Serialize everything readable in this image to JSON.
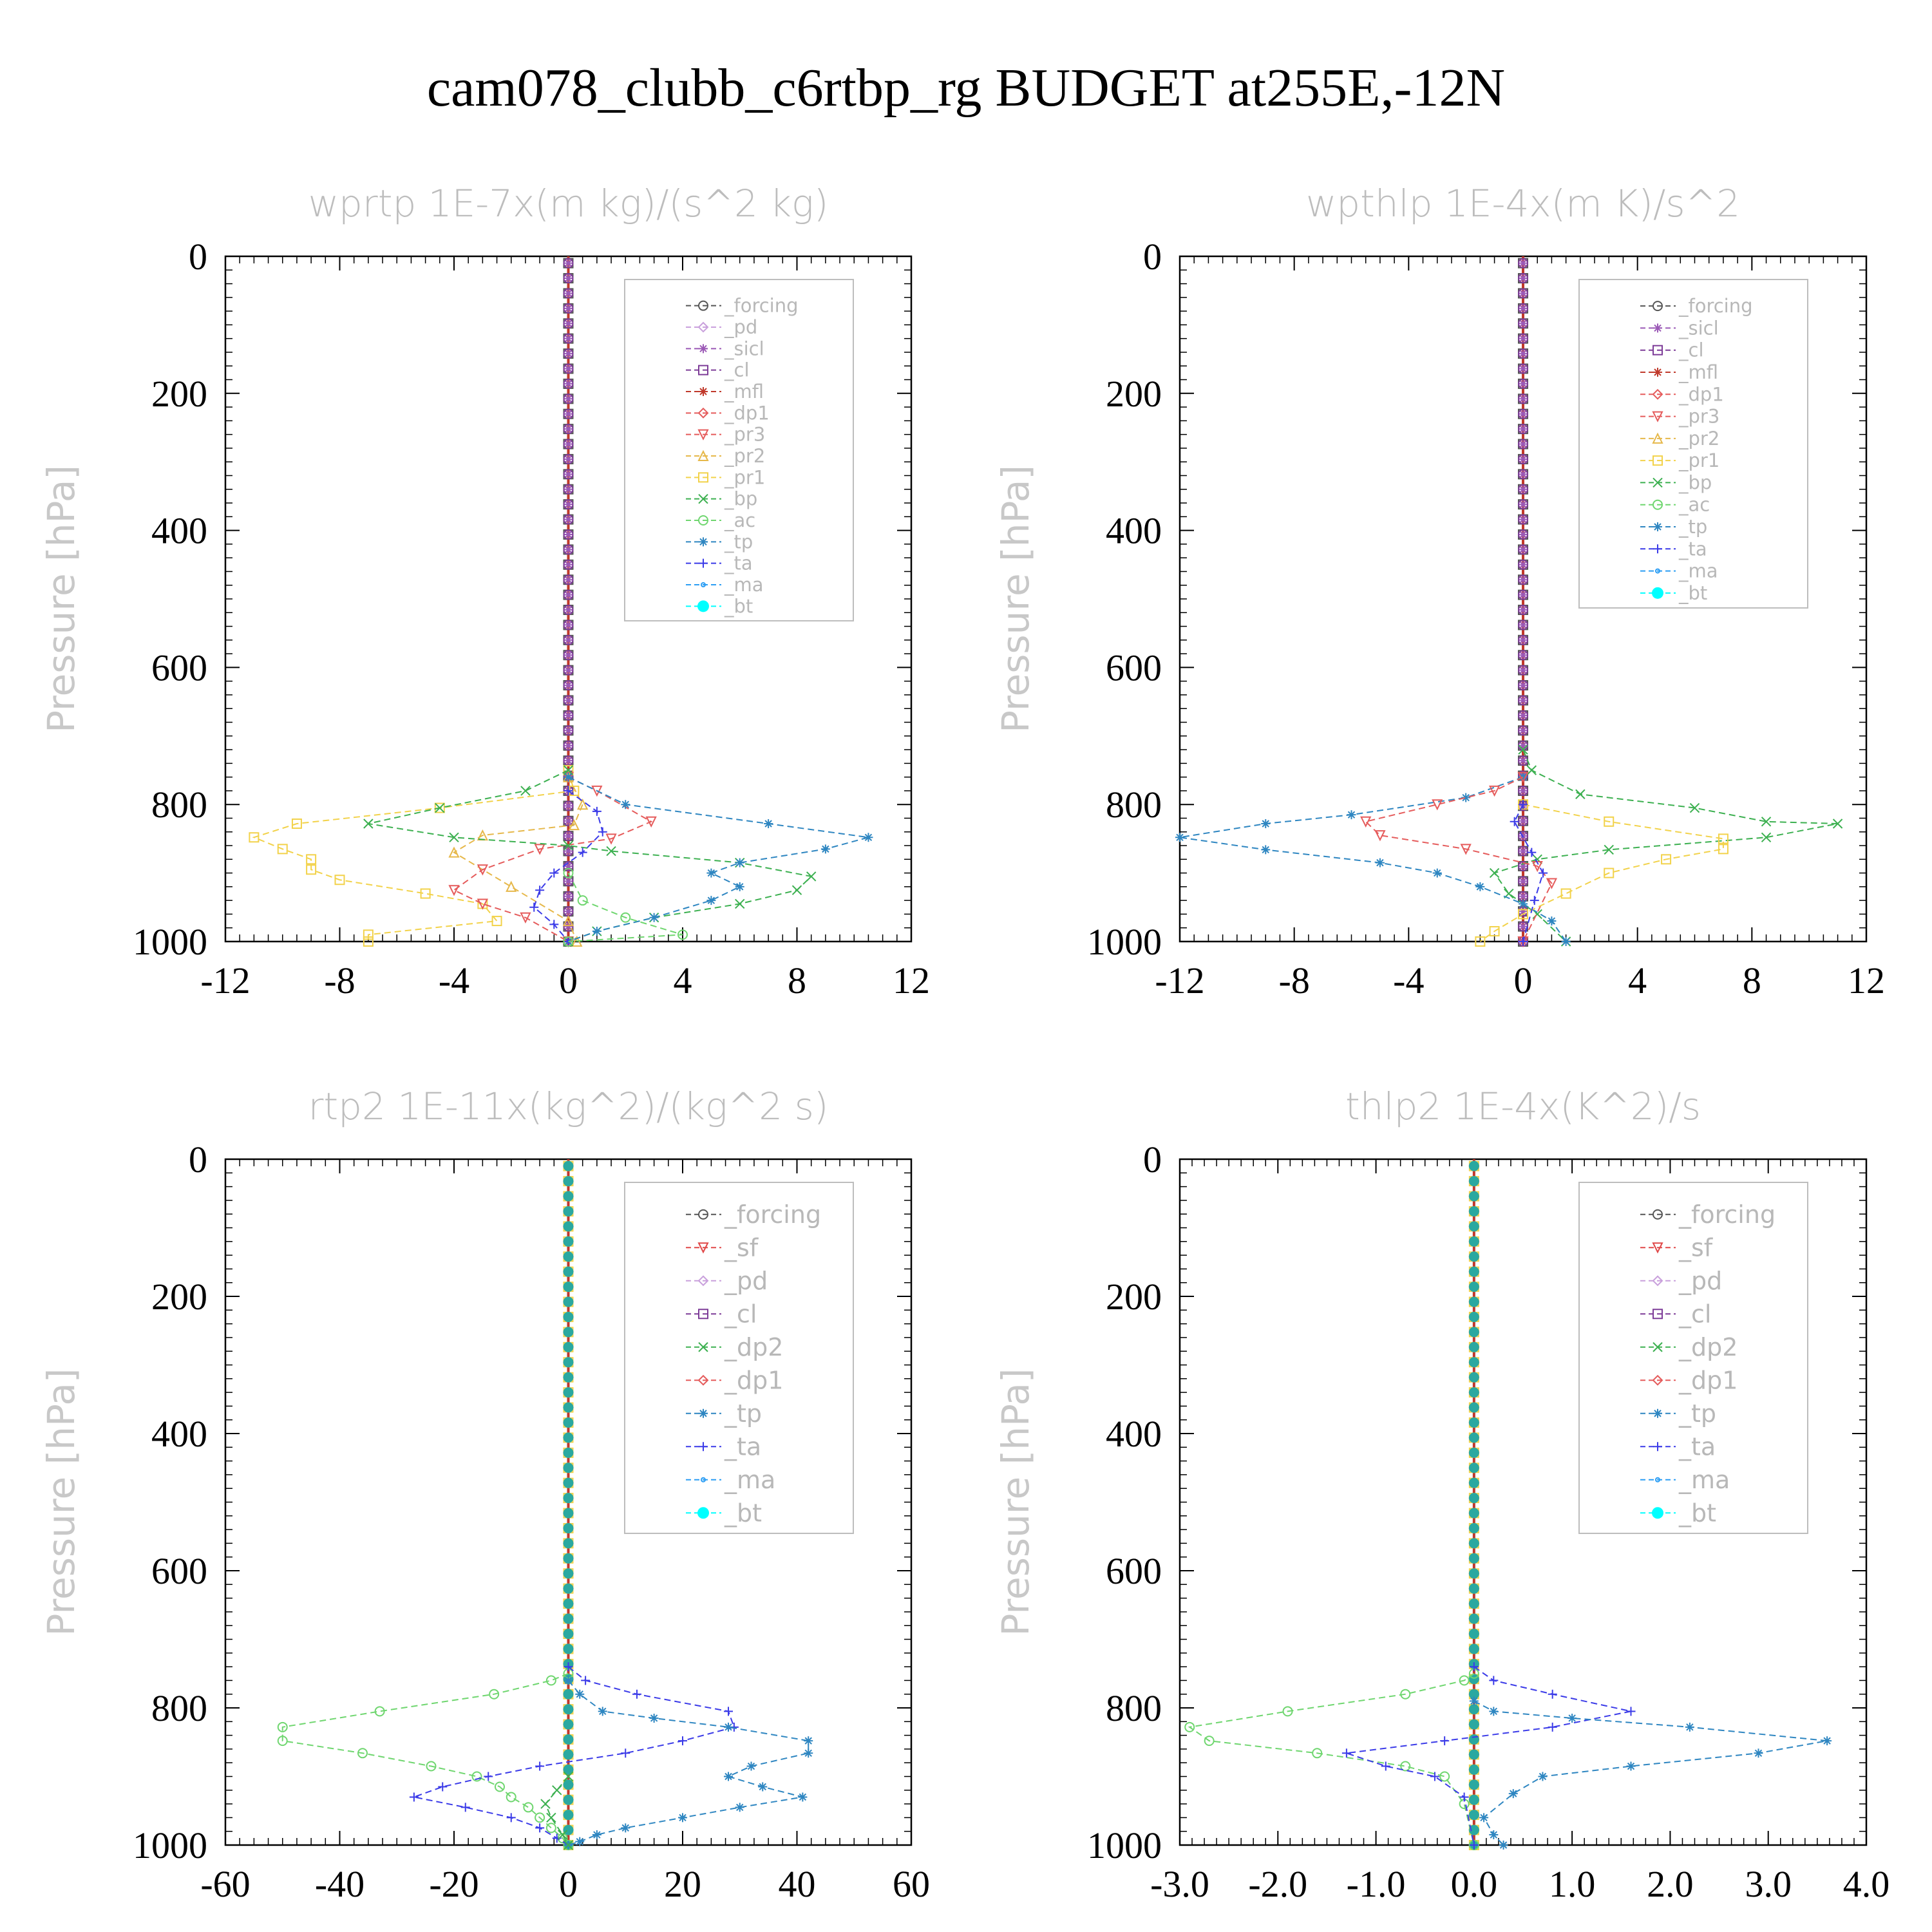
{
  "title": "cam078_clubb_c6rtbp_rg  BUDGET at255E,-12N",
  "colors": {
    "forcing": "#555555",
    "pd": "#c9a0dc",
    "sicl": "#9b59b6",
    "cl": "#7d3c98",
    "mfl": "#c0392b",
    "dp1": "#e55b5b",
    "sf": "#e04848",
    "pr3": "#e55b5b",
    "pr2": "#e6b84a",
    "pr1": "#f2d24a",
    "bp": "#3cb050",
    "ac": "#6fd66f",
    "dp2": "#3cb050",
    "tp": "#2e86c1",
    "ta": "#3b3be8",
    "ma": "#2a9df4",
    "bt": "#00ffff"
  },
  "chart_data": [
    {
      "type": "line",
      "title": "wprtp   1E-7x(m kg)/(s^2 kg)",
      "ylabel": "Pressure [hPa]",
      "xlim": [
        -12,
        12
      ],
      "ylim": [
        1000,
        0
      ],
      "xticks": [
        "-12",
        "-8",
        "-4",
        "0",
        "4",
        "8",
        "12"
      ],
      "yticks": [
        "0",
        "200",
        "400",
        "600",
        "800",
        "1000"
      ],
      "legend": [
        "_forcing",
        "_pd",
        "_sicl",
        "_cl",
        "_mfl",
        "_dp1",
        "_pr3",
        "_pr2",
        "_pr1",
        "_bp",
        "_ac",
        "_tp",
        "_ta",
        "_ma",
        "_bt"
      ],
      "series": [
        {
          "name": "_pr1",
          "color": "#f2d24a",
          "marker": "square",
          "x": [
            0,
            0.2,
            -4.5,
            -9.5,
            -11,
            -10,
            -9,
            -9,
            -8,
            -5,
            -3,
            -2.5,
            -7,
            -7
          ],
          "y": [
            750,
            780,
            805,
            828,
            848,
            865,
            880,
            895,
            910,
            930,
            945,
            970,
            990,
            1000
          ]
        },
        {
          "name": "_pr2",
          "color": "#e6b84a",
          "marker": "triangle",
          "x": [
            0,
            0.5,
            0.2,
            -3,
            -4,
            -2,
            0,
            0.3
          ],
          "y": [
            760,
            800,
            830,
            845,
            870,
            920,
            970,
            1000
          ]
        },
        {
          "name": "_pr3",
          "color": "#e55b5b",
          "marker": "tri-down",
          "x": [
            0,
            1,
            2.9,
            1.5,
            -1,
            -3,
            -4,
            -3,
            -1.5,
            0
          ],
          "y": [
            760,
            780,
            825,
            850,
            865,
            895,
            925,
            945,
            965,
            1000
          ]
        },
        {
          "name": "_bp",
          "color": "#3cb050",
          "marker": "x",
          "x": [
            0,
            -1.5,
            -4.5,
            -7,
            -4,
            0,
            1.5,
            6,
            8.5,
            8,
            6,
            3,
            1,
            0
          ],
          "y": [
            750,
            780,
            805,
            828,
            848,
            860,
            868,
            885,
            905,
            925,
            945,
            965,
            985,
            1000
          ]
        },
        {
          "name": "_tp",
          "color": "#2e86c1",
          "marker": "asterisk",
          "x": [
            0,
            2,
            7,
            10.5,
            9,
            6,
            5,
            6,
            5,
            3,
            1,
            0
          ],
          "y": [
            760,
            800,
            828,
            848,
            865,
            885,
            900,
            920,
            940,
            965,
            985,
            1000
          ]
        },
        {
          "name": "_ta",
          "color": "#3b3be8",
          "marker": "plus",
          "x": [
            0,
            1,
            1.2,
            0.5,
            -0.5,
            -1,
            -1.2,
            -0.5,
            0
          ],
          "y": [
            780,
            810,
            840,
            870,
            900,
            925,
            950,
            975,
            1000
          ]
        },
        {
          "name": "_ac",
          "color": "#6fd66f",
          "marker": "circle",
          "x": [
            0,
            0.5,
            2,
            4,
            0
          ],
          "y": [
            900,
            940,
            965,
            990,
            1000
          ]
        }
      ]
    },
    {
      "type": "line",
      "title": "wpthlp   1E-4x(m K)/s^2",
      "ylabel": "Pressure [hPa]",
      "xlim": [
        -12,
        12
      ],
      "ylim": [
        1000,
        0
      ],
      "xticks": [
        "-12",
        "-8",
        "-4",
        "0",
        "4",
        "8",
        "12"
      ],
      "yticks": [
        "0",
        "200",
        "400",
        "600",
        "800",
        "1000"
      ],
      "legend": [
        "_forcing",
        "_sicl",
        "_cl",
        "_mfl",
        "_dp1",
        "_pr3",
        "_pr2",
        "_pr1",
        "_bp",
        "_ac",
        "_tp",
        "_ta",
        "_ma",
        "_bt"
      ],
      "series": [
        {
          "name": "_bp",
          "color": "#3cb050",
          "marker": "x",
          "x": [
            0,
            0.3,
            2,
            6,
            8.5,
            11,
            8.5,
            3,
            0.5,
            -1,
            -0.5,
            0.5,
            1.5
          ],
          "y": [
            720,
            750,
            785,
            805,
            825,
            828,
            848,
            866,
            880,
            900,
            930,
            960,
            1000
          ]
        },
        {
          "name": "_tp",
          "color": "#2e86c1",
          "marker": "asterisk",
          "x": [
            0,
            -2,
            -6,
            -9,
            -12,
            -9,
            -5,
            -3,
            -1.5,
            0,
            1,
            1.5
          ],
          "y": [
            760,
            790,
            815,
            828,
            848,
            866,
            885,
            900,
            920,
            945,
            970,
            1000
          ]
        },
        {
          "name": "_pr3",
          "color": "#e55b5b",
          "marker": "tri-down",
          "x": [
            0,
            -1,
            -3,
            -5.5,
            -5,
            -2,
            0.5,
            1,
            0
          ],
          "y": [
            760,
            780,
            800,
            825,
            845,
            865,
            890,
            915,
            1000
          ]
        },
        {
          "name": "_pr1",
          "color": "#f2d24a",
          "marker": "square",
          "x": [
            0,
            3,
            7,
            7,
            5,
            3,
            1.5,
            0,
            -1,
            -1.5
          ],
          "y": [
            800,
            825,
            850,
            865,
            880,
            900,
            930,
            960,
            985,
            1000
          ]
        },
        {
          "name": "_ta",
          "color": "#3b3be8",
          "marker": "plus",
          "x": [
            0,
            -0.3,
            0.3,
            0.7,
            0.4,
            0
          ],
          "y": [
            800,
            825,
            870,
            900,
            940,
            1000
          ]
        }
      ]
    },
    {
      "type": "line",
      "title": "rtp2   1E-11x(kg^2)/(kg^2 s)",
      "ylabel": "Pressure [hPa]",
      "xlim": [
        -60,
        60
      ],
      "ylim": [
        1000,
        0
      ],
      "xticks": [
        "-60",
        "-40",
        "-20",
        "0",
        "20",
        "40",
        "60"
      ],
      "yticks": [
        "0",
        "200",
        "400",
        "600",
        "800",
        "1000"
      ],
      "legend": [
        "_forcing",
        "_sf",
        "_pd",
        "_cl",
        "_dp2",
        "_dp1",
        "_tp",
        "_ta",
        "_ma",
        "_bt"
      ],
      "series": [
        {
          "name": "_dp1",
          "color": "#6fd66f",
          "marker": "circle",
          "x": [
            0,
            -3,
            -13,
            -33,
            -50,
            -50,
            -36,
            -24,
            -16,
            -12,
            -10,
            -7,
            -5,
            -3,
            -1,
            0
          ],
          "y": [
            750,
            760,
            780,
            805,
            828,
            848,
            866,
            885,
            900,
            915,
            930,
            945,
            960,
            975,
            990,
            1000
          ]
        },
        {
          "name": "_ta",
          "color": "#3b3be8",
          "marker": "plus",
          "x": [
            0,
            3,
            12,
            28,
            29,
            20,
            10,
            -5,
            -14,
            -22,
            -27,
            -18,
            -10,
            -5,
            -2,
            0
          ],
          "y": [
            740,
            760,
            780,
            805,
            828,
            848,
            866,
            885,
            900,
            915,
            930,
            945,
            960,
            975,
            990,
            1000
          ]
        },
        {
          "name": "_tp",
          "color": "#2e86c1",
          "marker": "asterisk",
          "x": [
            0,
            2,
            6,
            15,
            28,
            42,
            42,
            32,
            28,
            34,
            41,
            30,
            20,
            10,
            5,
            2,
            0
          ],
          "y": [
            760,
            780,
            805,
            815,
            828,
            848,
            866,
            885,
            900,
            915,
            930,
            945,
            960,
            975,
            985,
            995,
            1000
          ]
        },
        {
          "name": "_dp2",
          "color": "#3cb050",
          "marker": "x",
          "x": [
            0,
            -2,
            -4,
            -3,
            -1,
            0
          ],
          "y": [
            900,
            920,
            940,
            960,
            985,
            1000
          ]
        }
      ]
    },
    {
      "type": "line",
      "title": "thlp2   1E-4x(K^2)/s",
      "ylabel": "Pressure [hPa]",
      "xlim": [
        -3.0,
        4.0
      ],
      "ylim": [
        1000,
        0
      ],
      "xticks": [
        "-3.0",
        "-2.0",
        "-1.0",
        "0.0",
        "1.0",
        "2.0",
        "3.0",
        "4.0"
      ],
      "yticks": [
        "0",
        "200",
        "400",
        "600",
        "800",
        "1000"
      ],
      "legend": [
        "_forcing",
        "_sf",
        "_pd",
        "_cl",
        "_dp2",
        "_dp1",
        "_tp",
        "_ta",
        "_ma",
        "_bt"
      ],
      "series": [
        {
          "name": "_dp1",
          "color": "#6fd66f",
          "marker": "circle",
          "x": [
            0,
            -0.1,
            -0.7,
            -1.9,
            -2.9,
            -2.7,
            -1.6,
            -0.7,
            -0.3,
            -0.1,
            0
          ],
          "y": [
            750,
            760,
            780,
            805,
            828,
            848,
            866,
            885,
            900,
            940,
            1000
          ]
        },
        {
          "name": "_ta",
          "color": "#3b3be8",
          "marker": "plus",
          "x": [
            0,
            0.2,
            0.8,
            1.6,
            0.8,
            -0.3,
            -1.3,
            -0.9,
            -0.4,
            -0.1,
            0
          ],
          "y": [
            740,
            760,
            780,
            805,
            828,
            848,
            866,
            885,
            900,
            930,
            1000
          ]
        },
        {
          "name": "_tp",
          "color": "#2e86c1",
          "marker": "asterisk",
          "x": [
            0,
            0.2,
            1.0,
            2.2,
            3.6,
            2.9,
            1.6,
            0.7,
            0.4,
            0.1,
            0.2,
            0.3
          ],
          "y": [
            790,
            805,
            815,
            828,
            848,
            866,
            885,
            900,
            925,
            960,
            985,
            1000
          ]
        }
      ]
    }
  ]
}
